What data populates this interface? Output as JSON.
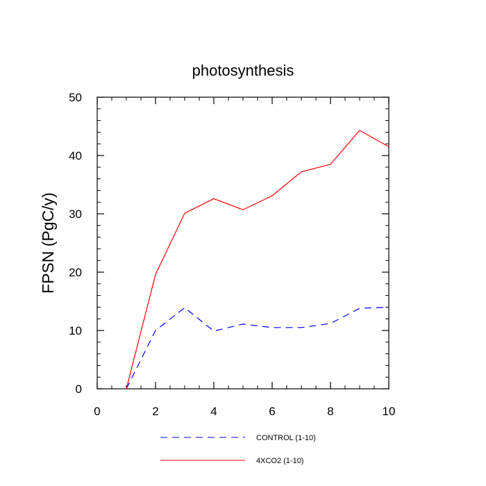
{
  "chart_data": {
    "type": "line",
    "title": "photosynthesis",
    "xlabel": "",
    "ylabel": "FPSN  (PgC/y)",
    "xlim": [
      0,
      10
    ],
    "ylim": [
      0,
      50
    ],
    "x_ticks": [
      0,
      2,
      4,
      6,
      8,
      10
    ],
    "y_ticks": [
      0,
      10,
      20,
      30,
      40,
      50
    ],
    "x_tick_labels": [
      "0",
      "2",
      "4",
      "6",
      "8",
      "10"
    ],
    "y_tick_labels": [
      "0",
      "10",
      "20",
      "30",
      "40",
      "50"
    ],
    "x_minor_step": 0.5,
    "y_minor_step": 2,
    "grid": false,
    "legend_position": "bottom",
    "series": [
      {
        "name": "CONTROL (1-10)",
        "color": "#0000ff",
        "line_style": "dashed",
        "x": [
          1,
          2,
          3,
          4,
          5,
          6,
          7,
          8,
          9,
          10
        ],
        "y": [
          0.0,
          10.0,
          13.9,
          9.9,
          11.1,
          10.5,
          10.5,
          11.2,
          13.8,
          14.0
        ]
      },
      {
        "name": "4XCO2 (1-10)",
        "color": "#ff0000",
        "line_style": "solid",
        "x": [
          1,
          2,
          3,
          4,
          5,
          6,
          7,
          8,
          9,
          10
        ],
        "y": [
          0.0,
          19.6,
          30.1,
          32.6,
          30.7,
          33.1,
          37.2,
          38.5,
          44.3,
          41.5
        ]
      }
    ]
  }
}
